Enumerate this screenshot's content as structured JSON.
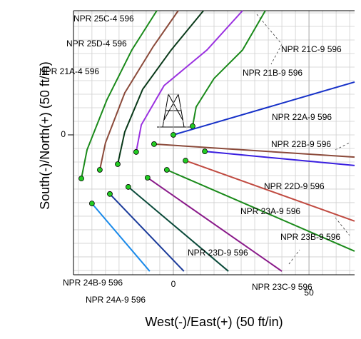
{
  "chart_data": {
    "type": "line",
    "x_label": "West(-)/East(+) (50 ft/in)",
    "y_label": "South(-)/North(+) (50 ft/in)",
    "xlim": [
      -36.8,
      66.8
    ],
    "ylim": [
      -51.6,
      45.8
    ],
    "xticks": [
      0,
      50
    ],
    "yticks": [
      0
    ],
    "grid": true,
    "x_gridlines": [
      -35,
      -30,
      -25,
      -20,
      -15,
      -10,
      -5,
      0,
      5,
      10,
      15,
      20,
      25,
      30,
      35,
      40,
      45,
      50,
      55,
      60,
      65
    ],
    "y_gridlines": [
      -50,
      -45,
      -40,
      -35,
      -30,
      -25,
      -20,
      -15,
      -10,
      -5,
      0,
      5,
      10,
      15,
      20,
      25,
      30,
      35,
      40,
      45
    ],
    "series": [
      {
        "color": "#1a8a1a",
        "x": [
          -33.9,
          -31.8,
          -24.5,
          -15.3,
          -6.1
        ],
        "values": [
          -16.1,
          -5.5,
          12.9,
          31.3,
          45.8
        ]
      },
      {
        "color": "#8b4a3a",
        "x": [
          -27.1,
          -25,
          -17.9,
          -7.4,
          1.8
        ],
        "values": [
          -12.9,
          -2.9,
          15.5,
          32.6,
          45.8
        ]
      },
      {
        "color": "#0a3a1a",
        "x": [
          -20.5,
          -17.9,
          -11.3,
          -0.8,
          11.1
        ],
        "values": [
          -10.8,
          1.1,
          16.8,
          31.3,
          45.8
        ]
      },
      {
        "color": "#9a30e0",
        "x": [
          -13.7,
          -11.8,
          -3.4,
          12.4,
          25.5
        ],
        "values": [
          -6.3,
          3.7,
          18.2,
          31.3,
          45.8
        ]
      },
      {
        "color": "#1a8a1a",
        "x": [
          7.1,
          8.4,
          15,
          25.5,
          33.9
        ],
        "values": [
          3.2,
          10.3,
          20.8,
          31.3,
          45.8
        ]
      },
      {
        "color": "#1530c8",
        "x": [
          0,
          66.8
        ],
        "values": [
          0,
          19.5
        ]
      },
      {
        "color": "#8b4a3a",
        "x": [
          -7.1,
          66.8
        ],
        "values": [
          -3.4,
          -8.2
        ]
      },
      {
        "color": "#3a20e0",
        "x": [
          11.6,
          66.8
        ],
        "values": [
          -6.1,
          -11.3
        ]
      },
      {
        "color": "#c04a40",
        "x": [
          4.5,
          66.8
        ],
        "values": [
          -9.5,
          -31.8
        ]
      },
      {
        "color": "#1a8a1a",
        "x": [
          -2.4,
          66.8
        ],
        "values": [
          -12.9,
          -42.9
        ]
      },
      {
        "color": "#8a1a8a",
        "x": [
          -9.5,
          40
        ],
        "values": [
          -15.8,
          -50.3
        ]
      },
      {
        "color": "#0a4a3a",
        "x": [
          -16.6,
          20.3
        ],
        "values": [
          -19.2,
          -50.3
        ]
      },
      {
        "color": "#1a3a9a",
        "x": [
          -23.4,
          3.9
        ],
        "values": [
          -21.8,
          -50.3
        ]
      },
      {
        "color": "#1a8aea",
        "x": [
          -30,
          -8.7
        ],
        "values": [
          -25.3,
          -50.3
        ]
      }
    ],
    "annotations": [
      "NPR 25C-4 596",
      "NPR 25D-4 596",
      "NPR 21A-4 596",
      "NPR 21C-9 596",
      "NPR 21B-9 596",
      "NPR 22A-9 596",
      "NPR 22B-9 596",
      "NPR 22D-9 596",
      "NPR 23A-9 596",
      "NPR 23B-9 596",
      "NPR 23D-9 596",
      "NPR 24B-9 596",
      "NPR 24A-9 596",
      "NPR 23C-9 596"
    ]
  }
}
